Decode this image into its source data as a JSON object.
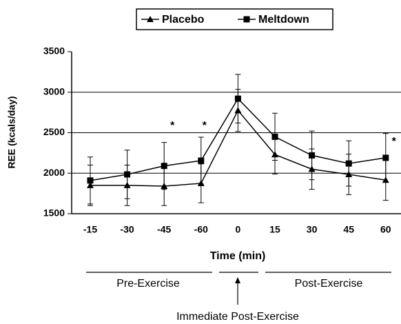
{
  "chart_data": {
    "type": "line",
    "categories": [
      "-15",
      "-30",
      "-45",
      "-60",
      "0",
      "15",
      "30",
      "45",
      "60"
    ],
    "series": [
      {
        "name": "Placebo",
        "color": "#000000",
        "marker": "triangle",
        "values": [
          1850,
          1850,
          1840,
          1875,
          2775,
          2230,
          2050,
          1985,
          1915
        ],
        "errors": [
          250,
          250,
          240,
          240,
          260,
          240,
          250,
          250,
          250
        ]
      },
      {
        "name": "Meltdown",
        "color": "#000000",
        "marker": "square",
        "values": [
          1910,
          1985,
          2090,
          2155,
          2920,
          2450,
          2220,
          2120,
          2190
        ],
        "errors": [
          290,
          300,
          290,
          290,
          300,
          290,
          300,
          280,
          300
        ]
      }
    ],
    "ylim": [
      1500,
      3500
    ],
    "yticks": [
      1500,
      2000,
      2500,
      3000,
      3500
    ],
    "grid": true,
    "y_label": "REE (kcals/day)",
    "x_label": "Time (min)",
    "legend": "top",
    "annotations": [
      {
        "text": "*",
        "category": "-45"
      },
      {
        "text": "*",
        "category": "-60"
      },
      {
        "text": "*",
        "category": "60"
      }
    ],
    "phases": [
      {
        "label": "Pre-Exercise"
      },
      {
        "label": "Immediate Post-Exercise"
      },
      {
        "label": "Post-Exercise"
      }
    ]
  }
}
